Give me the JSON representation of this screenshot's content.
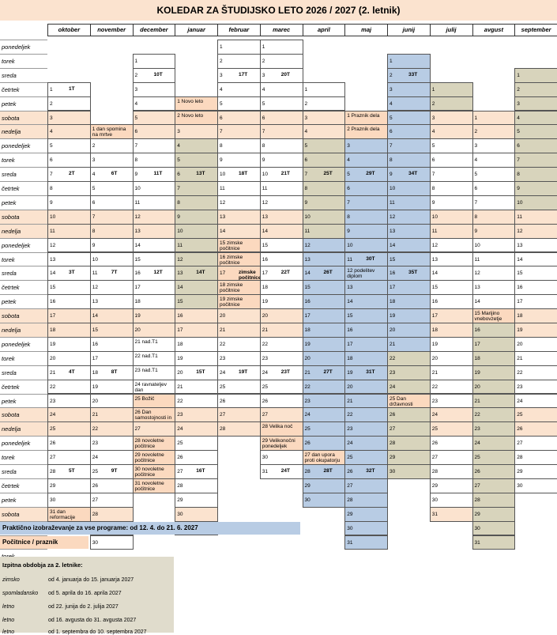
{
  "title": "KOLEDAR ZA ŠTUDIJSKO LETO 2026 / 2027 (2. letnik)",
  "day_labels": [
    "ponedeljek",
    "torek",
    "sreda",
    "četrtek",
    "petek",
    "sobota",
    "nedelja"
  ],
  "colors": {
    "study": "#ffffff",
    "holiday": "#fbd9bf",
    "practice": "#b8cce4",
    "exam": "#d8d4bc",
    "weekend": "#fbe3cf"
  },
  "months": [
    {
      "name": "oktober",
      "start": 3,
      "days": 31,
      "weeks": {
        "1": "1T",
        "7": "2T",
        "14": "3T",
        "21": "4T",
        "28": "5T"
      },
      "notes": {
        "31": "dan reformacije"
      },
      "holiday": [
        31
      ]
    },
    {
      "name": "november",
      "start": 6,
      "days": 30,
      "weeks": {
        "4": "6T",
        "11": "7T",
        "18": "8T",
        "25": "9T"
      },
      "notes": {
        "1": "dan spomina na mrtve"
      },
      "holiday": [
        1
      ]
    },
    {
      "name": "december",
      "start": 1,
      "days": 31,
      "weeks": {
        "2": "10T",
        "9": "11T",
        "16": "12T"
      },
      "notes": {
        "21": "nad.T1",
        "22": "nad.T1",
        "23": "nad.T1",
        "24": "ravnateljev dan",
        "25": "Božič",
        "26": "Dan samostojnosti in",
        "28": "novoletne počitnice",
        "29": "novoletne počitnice",
        "30": "novoletne počitnice",
        "31": "novoletne počitnice"
      },
      "holiday": [
        25,
        26,
        28,
        29,
        30,
        31
      ]
    },
    {
      "name": "januar",
      "start": 4,
      "days": 31,
      "weeks": {
        "6": "13T",
        "13": "14T",
        "20": "15T",
        "27": "16T"
      },
      "notes": {
        "1": "Novo leto",
        "2": "Novo leto"
      },
      "holiday": [
        1,
        2
      ],
      "exam": [
        4,
        5,
        6,
        7,
        8,
        9,
        10,
        11,
        12,
        13,
        14,
        15
      ]
    },
    {
      "name": "februar",
      "start": 0,
      "days": 28,
      "weeks": {
        "3": "17T",
        "10": "18T",
        "17": "zimske počitnice",
        "24": "19T"
      },
      "notes": {
        "15": "zimske počitnice",
        "16": "zimske počitnice",
        "18": "zimske počitnice",
        "19": "zimske počitnice"
      },
      "holiday": [
        15,
        16,
        17,
        18,
        19
      ]
    },
    {
      "name": "marec",
      "start": 0,
      "days": 31,
      "weeks": {
        "3": "20T",
        "10": "21T",
        "17": "22T",
        "24": "23T",
        "31": "24T"
      },
      "notes": {
        "28": "Velika noč",
        "29": "Velikonočni ponedeljek"
      },
      "holiday": [
        28,
        29
      ]
    },
    {
      "name": "april",
      "start": 3,
      "days": 30,
      "weeks": {
        "7": "25T",
        "14": "26T",
        "21": "27T",
        "28": "28T"
      },
      "notes": {
        "27": "dan upora proti okupatorju"
      },
      "holiday": [
        27
      ],
      "practice": [
        12,
        13,
        14,
        15,
        16,
        17,
        18,
        19,
        20,
        21,
        22,
        23,
        24,
        25,
        26,
        28,
        29,
        30
      ],
      "exam": [
        5,
        6,
        7,
        8,
        9,
        10,
        11
      ]
    },
    {
      "name": "maj",
      "start": 5,
      "days": 31,
      "weeks": {
        "5": "29T",
        "11": "30T",
        "19": "31T",
        "26": "32T"
      },
      "notes": {
        "1": "Praznik dela",
        "2": "Praznik dela",
        "12": "podelitev diplom"
      },
      "holiday": [
        1,
        2
      ],
      "practice": [
        3,
        4,
        5,
        6,
        7,
        8,
        9,
        10,
        11,
        12,
        13,
        14,
        15,
        16,
        17,
        18,
        19,
        20,
        21,
        22,
        23,
        24,
        25,
        26,
        27,
        28,
        29,
        30,
        31
      ]
    },
    {
      "name": "junij",
      "start": 1,
      "days": 30,
      "weeks": {
        "2": "33T",
        "9": "34T",
        "16": "35T"
      },
      "notes": {
        "25": "Dan državnosti"
      },
      "holiday": [
        25
      ],
      "practice": [
        1,
        2,
        3,
        4,
        5,
        6,
        7,
        8,
        9,
        10,
        11,
        12,
        13,
        14,
        15,
        16,
        17,
        18,
        19,
        20,
        21
      ],
      "exam": [
        22,
        23,
        24,
        26,
        27,
        28,
        29,
        30
      ]
    },
    {
      "name": "julij",
      "start": 3,
      "days": 31,
      "weeks": {},
      "notes": {},
      "holiday": [],
      "exam": [
        1,
        2
      ]
    },
    {
      "name": "avgust",
      "start": 5,
      "days": 31,
      "weeks": {},
      "notes": {
        "15": "Marijino vnebovzetje"
      },
      "holiday": [
        15
      ],
      "exam": [
        16,
        17,
        18,
        19,
        20,
        21,
        22,
        23,
        24,
        25,
        26,
        27,
        28,
        29,
        30,
        31
      ]
    },
    {
      "name": "september",
      "start": 2,
      "days": 30,
      "weeks": {},
      "notes": {},
      "holiday": [],
      "exam": [
        1,
        2,
        3,
        4,
        5,
        6,
        7,
        8,
        9,
        10
      ]
    }
  ],
  "legend": {
    "practice": "Praktično izobraževanje za  vse programe: od 12. 4. do 21. 6. 2027",
    "holiday": "Počitnice / praznik"
  },
  "exam_periods": {
    "heading": "Izpitna obdobja za 2. letnike:",
    "rows": [
      {
        "label": "zimsko",
        "range": "od 4. januarja do 15. januarja 2027"
      },
      {
        "label": "spomladansko",
        "range": "od 5. aprila do 16. aprila 2027"
      },
      {
        "label": "letno",
        "range": "od 22. junija do 2. julija 2027"
      },
      {
        "label": "letno",
        "range": "od 16. avgusta do 31. avgusta 2027"
      },
      {
        "label": "letno",
        "range": "od 1. septembra do 10. septembra 2027"
      }
    ]
  }
}
